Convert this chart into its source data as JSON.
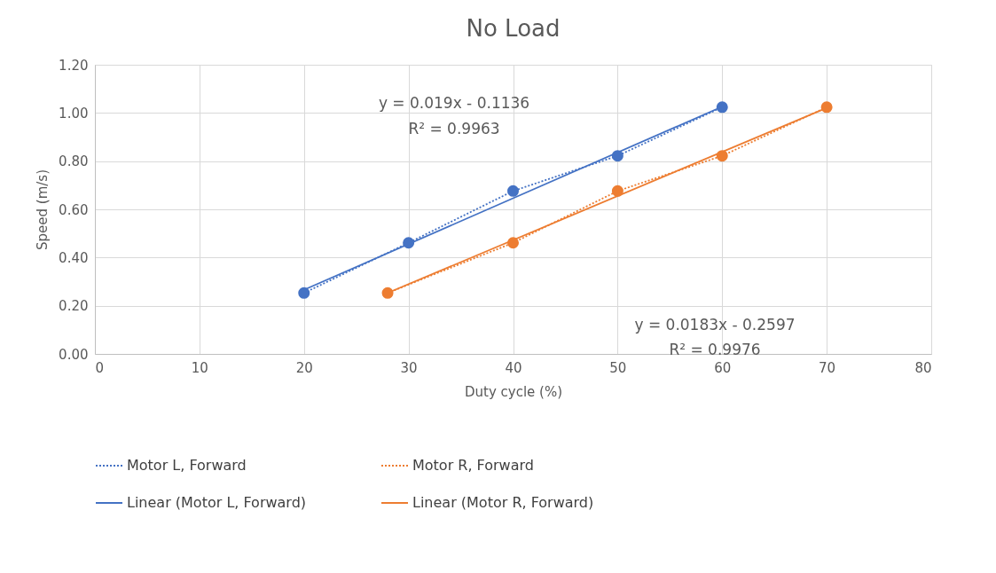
{
  "chart_data": {
    "type": "line",
    "title": "No Load",
    "xlabel": "Duty cycle (%)",
    "ylabel": "Speed (m/s)",
    "series": [
      {
        "name": "Motor L, Forward",
        "color": "#4472c4",
        "marker": "circle",
        "line_style": "dotted",
        "x": [
          20,
          30,
          40,
          50,
          60
        ],
        "values": [
          0.253,
          0.461,
          0.676,
          0.822,
          1.024
        ]
      },
      {
        "name": "Motor R, Forward",
        "color": "#ed7d31",
        "marker": "circle",
        "line_style": "dotted",
        "x": [
          28,
          40,
          50,
          60,
          70
        ],
        "values": [
          0.253,
          0.461,
          0.676,
          0.822,
          1.024
        ]
      },
      {
        "name": "Linear (Motor L, Forward)",
        "color": "#4472c4",
        "line_style": "solid",
        "x": [
          20,
          60
        ],
        "values": [
          0.266,
          1.026
        ]
      },
      {
        "name": "Linear (Motor R, Forward)",
        "color": "#ed7d31",
        "line_style": "solid",
        "x": [
          28,
          70
        ],
        "values": [
          0.253,
          1.021
        ]
      }
    ],
    "annotations": [
      "y = 0.019x - 0.1136",
      "R² = 0.9963",
      "y = 0.0183x - 0.2597",
      "R² = 0.9976"
    ],
    "xlim": [
      0,
      80
    ],
    "xticks": [
      0,
      10,
      20,
      30,
      40,
      50,
      60,
      70,
      80
    ],
    "ylim": [
      0,
      1.2
    ],
    "yticks": [
      {
        "value": 0,
        "label": "0.00"
      },
      {
        "value": 0.2,
        "label": "0.20"
      },
      {
        "value": 0.4,
        "label": "0.40"
      },
      {
        "value": 0.6,
        "label": "0.60"
      },
      {
        "value": 0.8,
        "label": "0.80"
      },
      {
        "value": 1.0,
        "label": "1.00"
      },
      {
        "value": 1.2,
        "label": "1.20"
      }
    ],
    "grid": true,
    "legend": "bottom"
  }
}
